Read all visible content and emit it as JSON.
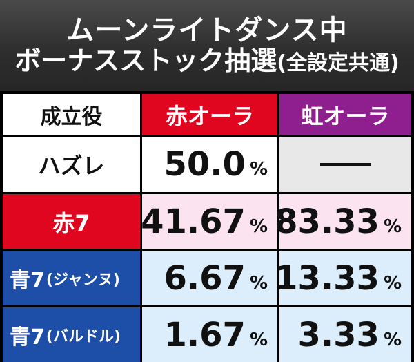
{
  "title": {
    "line1": "ムーンライトダンス中",
    "line2_main": "ボーナスストック抽選",
    "line2_paren": "(全設定共通)"
  },
  "header": {
    "role": "成立役",
    "red_aura": "赤オーラ",
    "rainbow_aura": "虹オーラ"
  },
  "rows": [
    {
      "role": "ハズレ",
      "role_sub": "",
      "red": "50.0",
      "red_unit": "%",
      "rainbow": "",
      "rainbow_unit": ""
    },
    {
      "role": "赤7",
      "role_sub": "",
      "red": "41.67",
      "red_unit": "%",
      "rainbow": "83.33",
      "rainbow_unit": "%"
    },
    {
      "role": "青7",
      "role_sub": "(ジャンヌ)",
      "red": "6.67",
      "red_unit": "%",
      "rainbow": "13.33",
      "rainbow_unit": "%"
    },
    {
      "role": "青7",
      "role_sub": "(バルドル)",
      "red": "1.67",
      "red_unit": "%",
      "rainbow": "3.33",
      "rainbow_unit": "%"
    }
  ],
  "colors": {
    "red": "#e0061f",
    "purple": "#8f1f8f",
    "blue": "#1e4fa8",
    "pink_bg": "#fbe3ef",
    "blue_bg": "#dcedfb"
  }
}
